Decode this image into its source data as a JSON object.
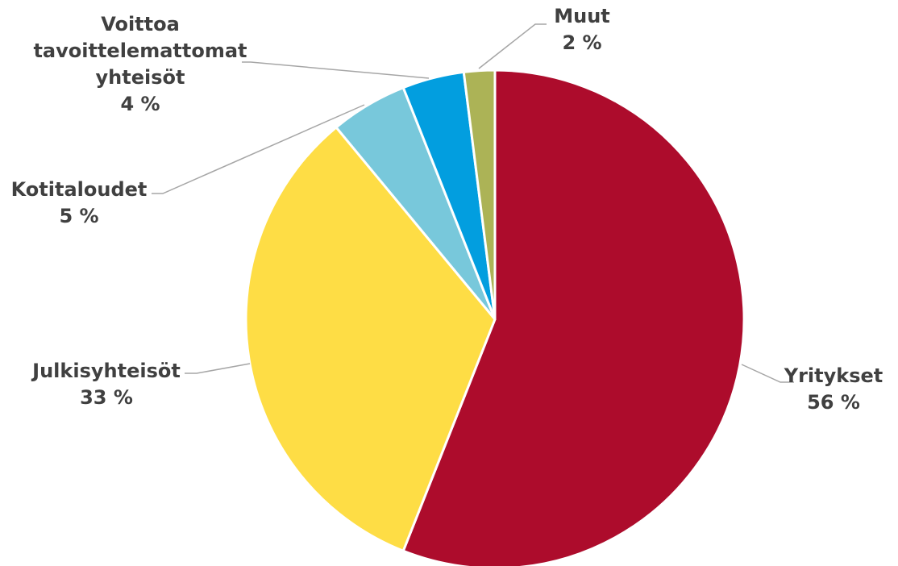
{
  "chart_data": {
    "type": "pie",
    "categories": [
      "Yritykset",
      "Julkisyhteisöt",
      "Kotitaloudet",
      "Voittoa tavoittelemattomat yhteisöt",
      "Muut"
    ],
    "values": [
      56,
      33,
      5,
      4,
      2
    ],
    "value_labels": [
      "56 %",
      "33 %",
      "5 %",
      "4 %",
      "2 %"
    ],
    "label_lines": [
      [
        "Yritykset",
        "56 %"
      ],
      [
        "Julkisyhteisöt",
        "33 %"
      ],
      [
        "Kotitaloudet",
        "5 %"
      ],
      [
        "Voittoa",
        "tavoittelemattomat",
        "yhteisöt",
        "4 %"
      ],
      [
        "Muut",
        "2 %"
      ]
    ],
    "colors": [
      "#ad0c2c",
      "#fedd45",
      "#78c8db",
      "#029edf",
      "#acb356"
    ],
    "start_angle_deg": 0,
    "direction": "clockwise",
    "legend": "none",
    "title": ""
  }
}
